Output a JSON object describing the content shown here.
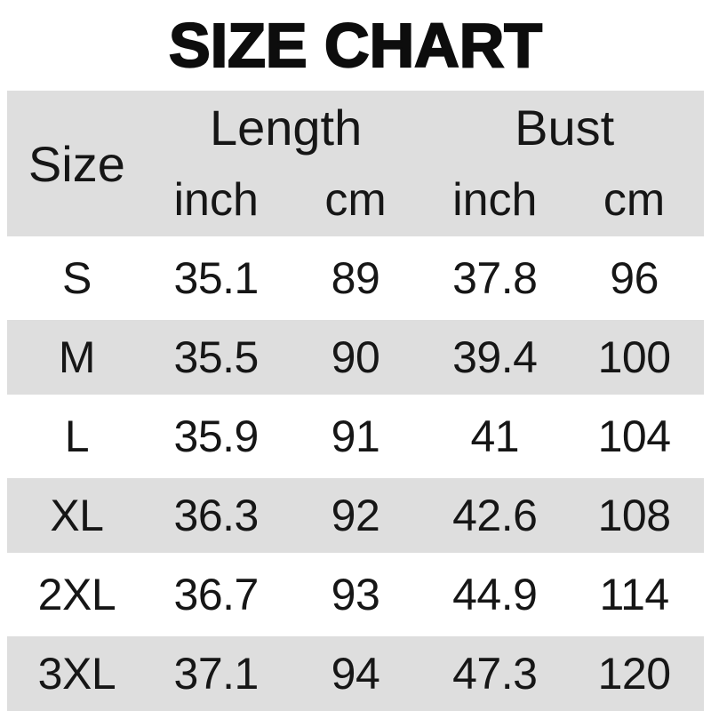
{
  "title": "SIZE CHART",
  "colors": {
    "background": "#ffffff",
    "band_gray": "#dedede",
    "text": "#161616",
    "title_color": "#0d0d0d"
  },
  "table": {
    "header": {
      "size": "Size",
      "length": "Length",
      "bust": "Bust",
      "length_inch": "inch",
      "length_cm": "cm",
      "bust_inch": "inch",
      "bust_cm": "cm"
    },
    "rows": [
      {
        "size": "S",
        "length_inch": "35.1",
        "length_cm": "89",
        "bust_inch": "37.8",
        "bust_cm": "96"
      },
      {
        "size": "M",
        "length_inch": "35.5",
        "length_cm": "90",
        "bust_inch": "39.4",
        "bust_cm": "100"
      },
      {
        "size": "L",
        "length_inch": "35.9",
        "length_cm": "91",
        "bust_inch": "41",
        "bust_cm": "104"
      },
      {
        "size": "XL",
        "length_inch": "36.3",
        "length_cm": "92",
        "bust_inch": "42.6",
        "bust_cm": "108"
      },
      {
        "size": "2XL",
        "length_inch": "36.7",
        "length_cm": "93",
        "bust_inch": "44.9",
        "bust_cm": "114"
      },
      {
        "size": "3XL",
        "length_inch": "37.1",
        "length_cm": "94",
        "bust_inch": "47.3",
        "bust_cm": "120"
      }
    ]
  },
  "chart_data": {
    "type": "table",
    "title": "SIZE CHART",
    "columns": [
      "Size",
      "Length (inch)",
      "Length (cm)",
      "Bust (inch)",
      "Bust (cm)"
    ],
    "rows": [
      [
        "S",
        35.1,
        89,
        37.8,
        96
      ],
      [
        "M",
        35.5,
        90,
        39.4,
        100
      ],
      [
        "L",
        35.9,
        91,
        41,
        104
      ],
      [
        "XL",
        36.3,
        92,
        42.6,
        108
      ],
      [
        "2XL",
        36.7,
        93,
        44.9,
        114
      ],
      [
        "3XL",
        37.1,
        94,
        47.3,
        120
      ]
    ]
  }
}
